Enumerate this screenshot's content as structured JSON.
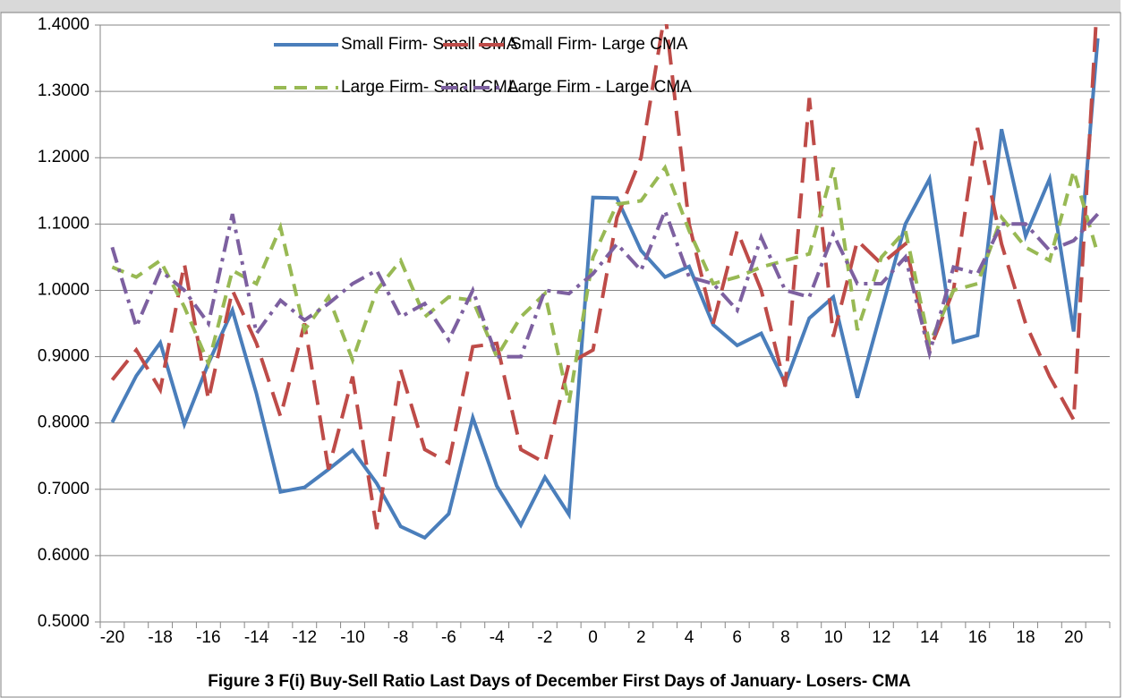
{
  "chart_data": {
    "type": "line",
    "title": "Figure 3 F(i) Buy-Sell Ratio Last Days of December First Days of January- Losers- CMA",
    "categories": [
      "-20",
      null,
      "-18",
      null,
      "-16",
      null,
      "-14",
      null,
      "-12",
      null,
      "-10",
      null,
      "-8",
      null,
      "-6",
      null,
      "-4",
      null,
      "-2",
      null,
      "0",
      null,
      "2",
      null,
      "4",
      null,
      "6",
      null,
      "8",
      null,
      "10",
      null,
      "12",
      null,
      "14",
      null,
      "16",
      null,
      "18",
      null,
      "20",
      null
    ],
    "series": [
      {
        "name": "Small Firm- Small CMA",
        "color": "#4a7ebb",
        "values": [
          0.801,
          0.871,
          0.921,
          0.798,
          0.89,
          0.97,
          0.844,
          0.696,
          0.703,
          0.73,
          0.759,
          0.709,
          0.644,
          0.627,
          0.663,
          0.808,
          0.705,
          0.646,
          0.718,
          0.662,
          1.14,
          1.139,
          1.06,
          1.02,
          1.036,
          0.948,
          0.917,
          0.935,
          0.86,
          0.958,
          0.99,
          0.838,
          0.97,
          1.1,
          1.168,
          0.922,
          0.932,
          1.243,
          1.082,
          1.168,
          0.938,
          1.38
        ]
      },
      {
        "name": "Small Firm- Large CMA",
        "color": "#be4b48",
        "values": [
          0.865,
          0.91,
          0.85,
          1.04,
          0.835,
          1.0,
          0.92,
          0.81,
          0.95,
          0.73,
          0.87,
          0.64,
          0.88,
          0.76,
          0.74,
          0.915,
          0.92,
          0.76,
          0.74,
          0.89,
          0.91,
          1.11,
          1.2,
          1.42,
          1.1,
          0.95,
          1.09,
          1.0,
          0.855,
          1.29,
          0.93,
          1.075,
          1.04,
          1.07,
          0.91,
          1.0,
          1.245,
          1.07,
          0.95,
          0.87,
          0.805,
          1.45
        ]
      },
      {
        "name": "Large Firm- Small CMA",
        "color": "#98b954",
        "values": [
          1.035,
          1.02,
          1.045,
          0.975,
          0.89,
          1.03,
          1.01,
          1.095,
          0.94,
          0.99,
          0.895,
          1.0,
          1.045,
          0.96,
          0.99,
          0.985,
          0.9,
          0.96,
          0.995,
          0.83,
          1.05,
          1.13,
          1.135,
          1.185,
          1.09,
          1.01,
          1.02,
          1.035,
          1.045,
          1.055,
          1.185,
          0.94,
          1.05,
          1.09,
          0.92,
          1.0,
          1.01,
          1.11,
          1.065,
          1.045,
          1.18,
          1.055
        ]
      },
      {
        "name": "Large Firm - Large CMA",
        "color": "#7d60a0",
        "values": [
          1.065,
          0.945,
          1.03,
          1.0,
          0.95,
          1.115,
          0.935,
          0.985,
          0.955,
          0.98,
          1.01,
          1.03,
          0.96,
          0.98,
          0.925,
          1.0,
          0.9,
          0.9,
          1.0,
          0.995,
          1.025,
          1.07,
          1.03,
          1.12,
          1.02,
          1.01,
          0.97,
          1.08,
          1.0,
          0.99,
          1.085,
          1.01,
          1.01,
          1.05,
          0.905,
          1.035,
          1.025,
          1.1,
          1.1,
          1.06,
          1.075,
          1.115
        ]
      }
    ],
    "ylim": [
      0.5,
      1.4
    ],
    "yticks": [
      {
        "value": 0.5,
        "label": "0.5000"
      },
      {
        "value": 0.6,
        "label": "0.6000"
      },
      {
        "value": 0.7,
        "label": "0.7000"
      },
      {
        "value": 0.8,
        "label": "0.8000"
      },
      {
        "value": 0.9,
        "label": "0.9000"
      },
      {
        "value": 1.0,
        "label": "1.0000"
      },
      {
        "value": 1.1,
        "label": "1.1000"
      },
      {
        "value": 1.2,
        "label": "1.2000"
      },
      {
        "value": 1.3,
        "label": "1.3000"
      },
      {
        "value": 1.4,
        "label": "1.4000"
      }
    ],
    "grid": true,
    "legend": "top"
  }
}
